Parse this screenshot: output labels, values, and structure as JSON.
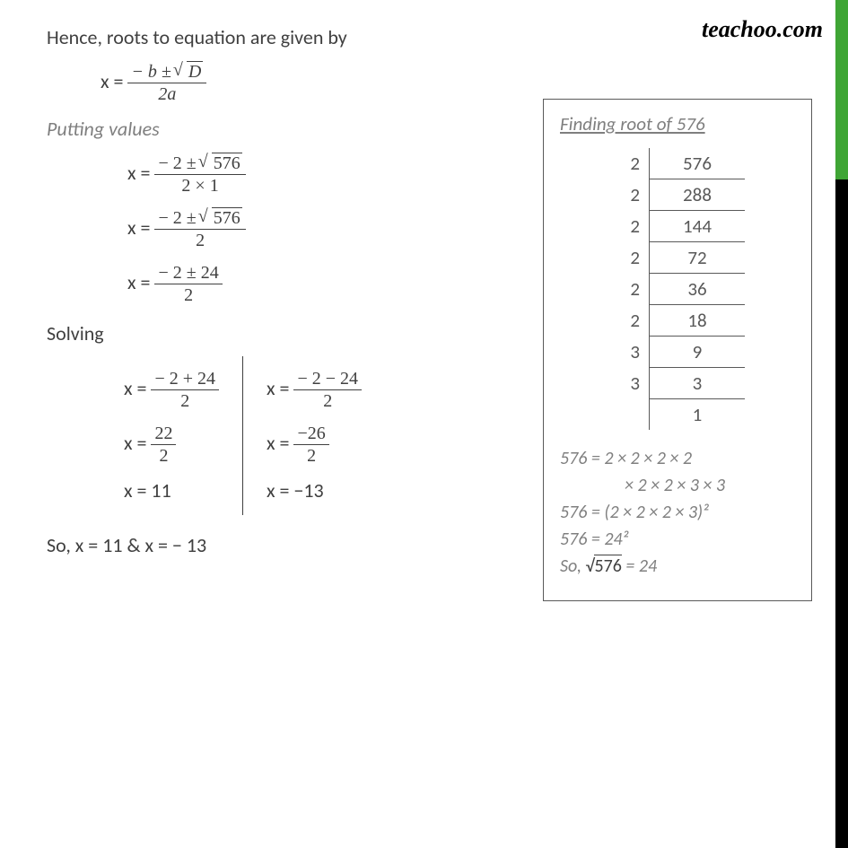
{
  "watermark": "teachoo.com",
  "heading": "Hence, roots to equation are given by",
  "formula": {
    "lhs": "x =",
    "num": "− b ± √D",
    "den": "2a",
    "num_raw": {
      "neg": "−",
      "b": "b",
      "pm": "±",
      "rad": "D"
    },
    "den_raw": "2a"
  },
  "putting": "Putting values",
  "steps": [
    {
      "lhs": "x =",
      "num": "− 2 ± √576",
      "den": "2 × 1",
      "rad": "576",
      "pre": "− 2 ±"
    },
    {
      "lhs": "x =",
      "num": "− 2 ± √576",
      "den": "2",
      "rad": "576",
      "pre": "− 2 ±"
    },
    {
      "lhs": "x =",
      "num": "− 2 ± 24",
      "den": "2"
    }
  ],
  "solving": "Solving",
  "left_col": [
    {
      "lhs": "x =",
      "num": "− 2 + 24",
      "den": "2"
    },
    {
      "lhs": "x =",
      "num": "22",
      "den": "2"
    },
    {
      "plain": "x = 11"
    }
  ],
  "right_col": [
    {
      "lhs": "x =",
      "num": "− 2 − 24",
      "den": "2"
    },
    {
      "lhs": "x =",
      "num": "−26",
      "den": "2"
    },
    {
      "plain": "x = −13"
    }
  ],
  "conclusion": "So, x = 11 & x =  − 13",
  "sidebox": {
    "title": "Finding root of 576",
    "rows": [
      {
        "f": "2",
        "v": "576"
      },
      {
        "f": "2",
        "v": "288"
      },
      {
        "f": "2",
        "v": "144"
      },
      {
        "f": "2",
        "v": "72"
      },
      {
        "f": "2",
        "v": "36"
      },
      {
        "f": "2",
        "v": "18"
      },
      {
        "f": "3",
        "v": "9"
      },
      {
        "f": "3",
        "v": "3"
      },
      {
        "f": "",
        "v": "1"
      }
    ],
    "lines": [
      "576 = 2 × 2 × 2 × 2",
      "× 2 × 2 × 3 × 3",
      "576 = (2 × 2 × 2 × 3)²",
      "576 = 24²",
      "So, √576 = 24"
    ]
  },
  "colors": {
    "green": "#3fa535",
    "black": "#000000",
    "grey": "#7f7f7f",
    "text": "#404040"
  }
}
